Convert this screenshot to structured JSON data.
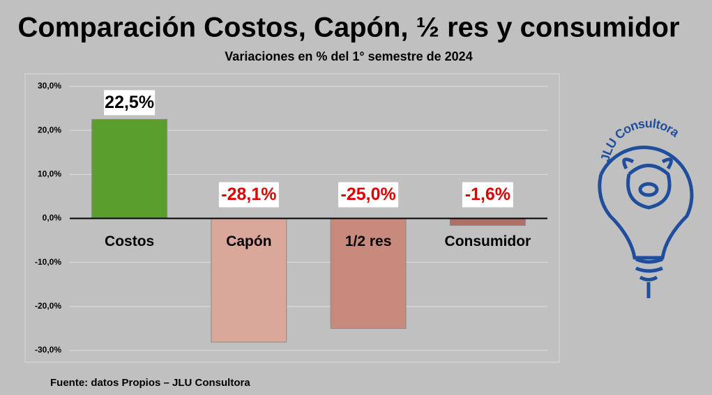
{
  "chart_data": {
    "type": "bar",
    "title": "Comparación Costos, Capón, ½ res y consumidor",
    "subtitle": "Variaciones en % del 1° semestre de 2024",
    "categories": [
      "Costos",
      "Capón",
      "1/2 res",
      "Consumidor"
    ],
    "values": [
      22.5,
      -28.1,
      -25.0,
      -1.6
    ],
    "value_labels": [
      "22,5%",
      "-28,1%",
      "-25,0%",
      "-1,6%"
    ],
    "colors": [
      "#5a9e2e",
      "#d9a89a",
      "#c98a7e",
      "#b07068"
    ],
    "ylim": [
      -30,
      30
    ],
    "yticks": [
      {
        "value": -30,
        "label": "-30,0%"
      },
      {
        "value": -20,
        "label": "-20,0%"
      },
      {
        "value": -10,
        "label": "-10,0%"
      },
      {
        "value": 0,
        "label": "0,0%"
      },
      {
        "value": 10,
        "label": "10,0%"
      },
      {
        "value": 20,
        "label": "20,0%"
      },
      {
        "value": 30,
        "label": "30,0%"
      }
    ],
    "grid": true,
    "source": "Fuente: datos Propios – JLU Consultora",
    "logo_text": "JLU Consultora"
  }
}
